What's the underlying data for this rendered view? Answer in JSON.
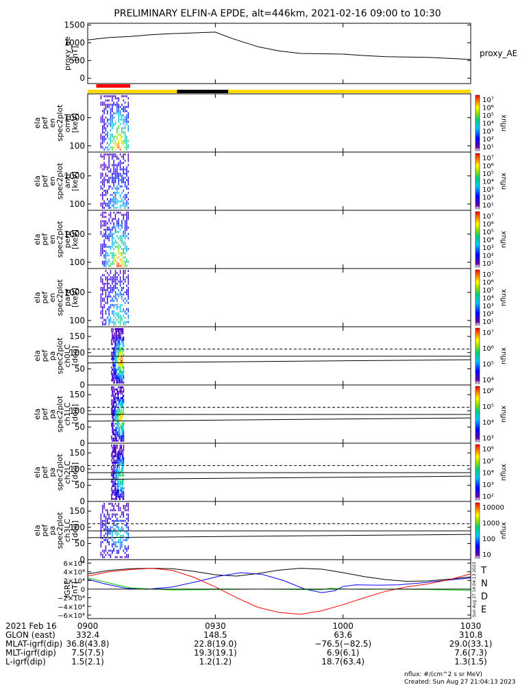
{
  "chart_data": {
    "type": "line",
    "title": "PRELIMINARY ELFIN-A EPDE, alt=446km, 2021-02-16 09:00 to 10:30",
    "x_range_minutes": [
      0,
      90
    ],
    "panels": [
      {
        "id": "proxy_ae",
        "type": "line",
        "ylabel": [
          "proxy_ae",
          "[nT]"
        ],
        "ylim": [
          -150,
          1550
        ],
        "yticks": [
          "1500",
          "1000",
          "500",
          "0"
        ],
        "ytick_values": [
          1500,
          1000,
          500,
          0
        ],
        "series": [
          {
            "name": "proxy_AE",
            "x": [
              0,
              5,
              10,
              15,
              20,
              25,
              30,
              34,
              40,
              45,
              50,
              55,
              60,
              65,
              70,
              75,
              80,
              85,
              90
            ],
            "y": [
              1080,
              1150,
              1180,
              1230,
              1260,
              1280,
              1300,
              1120,
              890,
              770,
              700,
              690,
              680,
              640,
              610,
              600,
              590,
              560,
              530
            ]
          }
        ]
      },
      {
        "id": "spec-omni",
        "type": "heatmap",
        "ylabel": [
          "ela",
          "pef",
          "en",
          "spec2plot",
          "omni",
          "[keV]"
        ],
        "scale": "log",
        "ylim": [
          60,
          7000
        ],
        "yticks": [
          "1000",
          "100"
        ],
        "ytick_values": [
          1000,
          100
        ],
        "cbar_ticks": [
          "10⁷",
          "10⁶",
          "10⁵",
          "10⁴",
          "10³",
          "10²",
          "10¹"
        ],
        "cbar_label": "nflux",
        "data_window_minutes": [
          3.0,
          9.8
        ],
        "intensity": 1.0
      },
      {
        "id": "spec-anti",
        "type": "heatmap",
        "ylabel": [
          "ela",
          "pef",
          "en",
          "spec2plot",
          "anti",
          "[keV]"
        ],
        "scale": "log",
        "ylim": [
          60,
          7000
        ],
        "yticks": [
          "1000",
          "100"
        ],
        "ytick_values": [
          1000,
          100
        ],
        "cbar_ticks": [
          "10⁷",
          "10⁶",
          "10⁵",
          "10⁴",
          "10³",
          "10²",
          "10¹"
        ],
        "cbar_label": "nflux",
        "data_window_minutes": [
          3.0,
          9.8
        ],
        "intensity": 0.45
      },
      {
        "id": "spec-perp",
        "type": "heatmap",
        "ylabel": [
          "ela",
          "pef",
          "en",
          "spec2plot",
          "perp",
          "[keV]"
        ],
        "scale": "log",
        "ylim": [
          60,
          7000
        ],
        "yticks": [
          "1000",
          "100"
        ],
        "ytick_values": [
          1000,
          100
        ],
        "cbar_ticks": [
          "10⁷",
          "10⁶",
          "10⁵",
          "10⁴",
          "10³",
          "10²",
          "10¹"
        ],
        "cbar_label": "nflux",
        "data_window_minutes": [
          3.0,
          9.8
        ],
        "intensity": 1.0
      },
      {
        "id": "spec-para",
        "type": "heatmap",
        "ylabel": [
          "ela",
          "pef",
          "en",
          "spec2plot",
          "para",
          "[keV]"
        ],
        "scale": "log",
        "ylim": [
          60,
          7000
        ],
        "yticks": [
          "1000",
          "100"
        ],
        "ytick_values": [
          1000,
          100
        ],
        "cbar_ticks": [
          "10⁷",
          "10⁶",
          "10⁵",
          "10⁴",
          "10³",
          "10²",
          "10¹"
        ],
        "cbar_label": "nflux",
        "data_window_minutes": [
          3.0,
          9.8
        ],
        "intensity": 0.6
      },
      {
        "id": "pa-ch0",
        "type": "heatmap",
        "ylabel": [
          "ela",
          "pef",
          "pa",
          "spec2plot",
          "ch0LC",
          "[deg]"
        ],
        "scale": "linear",
        "ylim": [
          0,
          180
        ],
        "yticks": [
          "150",
          "100",
          "50",
          "0"
        ],
        "ytick_values": [
          150,
          100,
          50,
          0
        ],
        "cbar_ticks": [
          "10⁷",
          "10⁶",
          "10⁵",
          "10⁴"
        ],
        "cbar_label": "nflux",
        "data_window_minutes": [
          5.5,
          8.5
        ],
        "intensity": 1.0,
        "lines": {
          "solid_upper": [
            89,
            89
          ],
          "solid_lower": [
            68,
            78
          ],
          "dashed": [
            111,
            111
          ]
        }
      },
      {
        "id": "pa-ch1",
        "type": "heatmap",
        "ylabel": [
          "ela",
          "pef",
          "pa",
          "spec2plot",
          "ch1LC",
          "[deg]"
        ],
        "scale": "linear",
        "ylim": [
          0,
          180
        ],
        "yticks": [
          "150",
          "100",
          "50",
          "0"
        ],
        "ytick_values": [
          150,
          100,
          50,
          0
        ],
        "cbar_ticks": [
          "10⁶",
          "10⁵",
          "10⁴",
          "10³"
        ],
        "cbar_label": "nflux",
        "data_window_minutes": [
          5.5,
          8.5
        ],
        "intensity": 0.85,
        "lines": {
          "solid_upper": [
            89,
            89
          ],
          "solid_lower": [
            68,
            78
          ],
          "dashed": [
            111,
            111
          ]
        }
      },
      {
        "id": "pa-ch2",
        "type": "heatmap",
        "ylabel": [
          "ela",
          "pef",
          "pa",
          "spec2plot",
          "ch2LC",
          "[deg]"
        ],
        "scale": "linear",
        "ylim": [
          0,
          180
        ],
        "yticks": [
          "150",
          "100",
          "50",
          "0"
        ],
        "ytick_values": [
          150,
          100,
          50,
          0
        ],
        "cbar_ticks": [
          "10⁶",
          "10⁵",
          "10⁴",
          "10³",
          "10²"
        ],
        "cbar_label": "nflux",
        "data_window_minutes": [
          5.5,
          8.5
        ],
        "intensity": 0.65,
        "lines": {
          "solid_upper": [
            89,
            89
          ],
          "solid_lower": [
            68,
            78
          ],
          "dashed": [
            111,
            111
          ]
        }
      },
      {
        "id": "pa-ch3",
        "type": "heatmap",
        "ylabel": [
          "ela",
          "pef",
          "pa",
          "spec2plot",
          "ch3LC",
          "[deg]"
        ],
        "scale": "linear",
        "ylim": [
          0,
          180
        ],
        "yticks": [
          "150",
          "100",
          "50",
          "0"
        ],
        "ytick_values": [
          150,
          100,
          50,
          0
        ],
        "cbar_ticks": [
          "10000",
          "1000",
          "100",
          "10"
        ],
        "cbar_label": "nflux",
        "data_window_minutes": [
          3.0,
          9.8
        ],
        "intensity": 0.45,
        "lines": {
          "solid_upper": [
            89,
            89
          ],
          "solid_lower": [
            68,
            78
          ],
          "dashed": [
            111,
            111
          ]
        }
      },
      {
        "id": "igrf",
        "type": "line",
        "ylabel": [
          "IGRF",
          "[nT]"
        ],
        "ylim": [
          -68000,
          68000
        ],
        "yticks": [
          "6×10⁴",
          "4×10⁴",
          "2×10⁴",
          "0",
          "−2×10⁴",
          "−4×10⁴",
          "−6×10⁴"
        ],
        "ytick_values": [
          60000,
          40000,
          20000,
          0,
          -20000,
          -40000,
          -60000
        ],
        "series": [
          {
            "name": "T",
            "color": "#000000",
            "x": [
              0,
              5,
              10,
              15,
              20,
              25,
              30,
              35,
              40,
              45,
              50,
              55,
              60,
              65,
              70,
              75,
              80,
              85,
              90
            ],
            "y": [
              35000,
              43000,
              47000,
              48000,
              47000,
              41000,
              33000,
              30000,
              36000,
              44000,
              48000,
              46000,
              38000,
              29000,
              22000,
              18000,
              19000,
              23000,
              28000
            ]
          },
          {
            "name": "N",
            "color": "#0000ff",
            "x": [
              0,
              4,
              9,
              14,
              20,
              26,
              31,
              36,
              41,
              46,
              51,
              55,
              58,
              60,
              63,
              68,
              73,
              78,
              84,
              90
            ],
            "y": [
              23000,
              12000,
              2000,
              -300,
              5000,
              18000,
              30000,
              38000,
              34000,
              20000,
              0,
              -8000,
              -4000,
              6000,
              10000,
              9000,
              10000,
              14000,
              20000,
              26000
            ]
          },
          {
            "name": "D",
            "color": "#ff0000",
            "x": [
              0,
              5,
              10,
              15,
              20,
              25,
              30,
              35,
              40,
              45,
              50,
              55,
              60,
              65,
              70,
              75,
              80,
              85,
              90
            ],
            "y": [
              30000,
              40000,
              45000,
              48000,
              43000,
              27000,
              5000,
              -20000,
              -42000,
              -54000,
              -58000,
              -50000,
              -36000,
              -20000,
              -5000,
              5000,
              12000,
              22000,
              35000
            ]
          },
          {
            "name": "E",
            "color": "#00cc00",
            "x": [
              0,
              5,
              10,
              15,
              20,
              30,
              40,
              50,
              55,
              57,
              60,
              65,
              70,
              75,
              80,
              85,
              90
            ],
            "y": [
              26000,
              14000,
              3000,
              0,
              -2000,
              -1000,
              0,
              -1000,
              -1500,
              2000,
              300,
              -700,
              0,
              -500,
              -1000,
              -2000,
              -2500
            ]
          }
        ]
      }
    ],
    "x_ticks": [
      {
        "time": "0900",
        "glon": "332.4",
        "mlat": "36.8(43.8)",
        "mlt": "7.5(7.5)",
        "l": "1.5(2.1)"
      },
      {
        "time": "0930",
        "glon": "148.5",
        "mlat": "22.8(19.0)",
        "mlt": "19.3(19.1)",
        "l": "1.2(1.2)"
      },
      {
        "time": "1000",
        "glon": "63.6",
        "mlat": "−76.5(−82.5)",
        "mlt": "6.9(6.1)",
        "l": "18.7(63.4)"
      },
      {
        "time": "1030",
        "glon": "310.8",
        "mlat": "29.0(33.1)",
        "mlt": "7.6(7.3)",
        "l": "1.3(1.5)"
      }
    ],
    "row_labels": {
      "date": "2021 Feb 16",
      "glon": "GLON (east)",
      "mlat": "MLAT-igrf(dip)",
      "mlt": "MLT-igrf(dip)",
      "l": "L-igrf(dip)"
    },
    "bars": {
      "red_minutes": [
        2.0,
        10.0
      ],
      "yellow_minutes": [
        0,
        90
      ],
      "black_minutes": [
        21.0,
        33.0
      ]
    },
    "footer": {
      "nflux_unit": "nflux: #/(cm^2 s sr MeV)",
      "created": "Created: Sun Aug 27 21:04:13 2023",
      "side_stamp": "Sun Aug 27 14:04:13 2023"
    },
    "legend_igrf": [
      "T",
      "N",
      "D",
      "E"
    ],
    "proxy_legend": "proxy_AE"
  }
}
